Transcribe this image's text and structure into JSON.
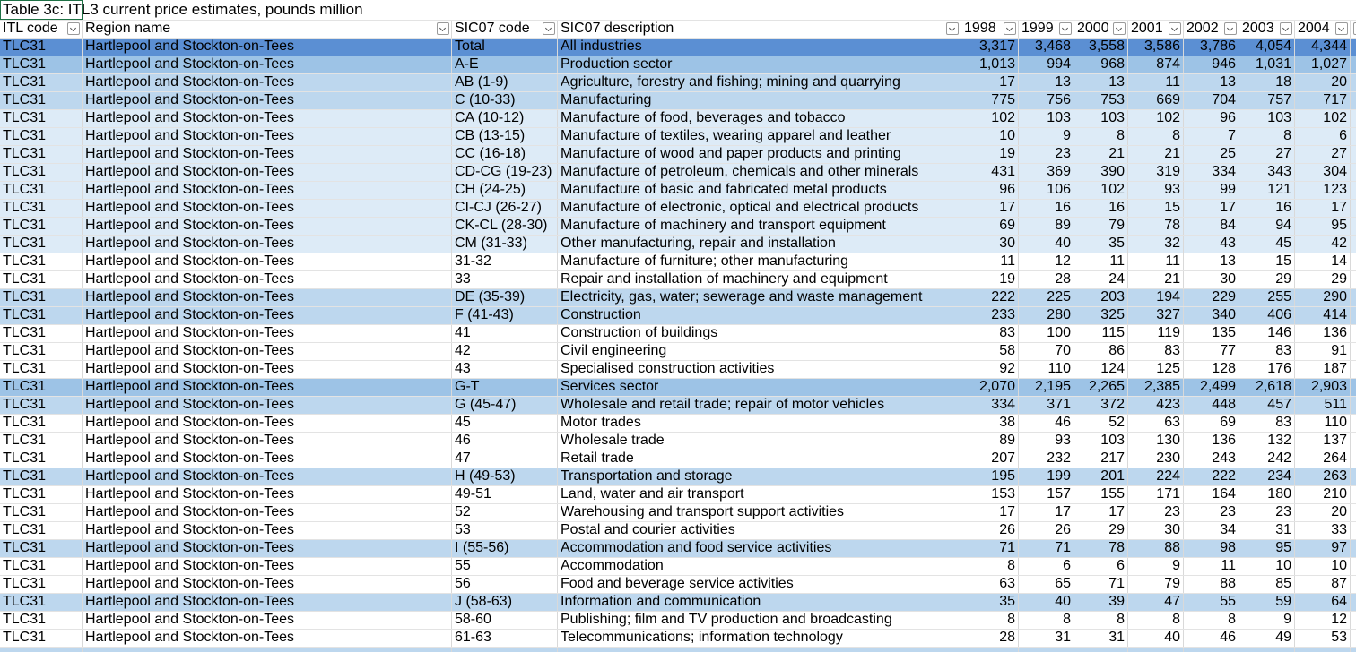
{
  "title": "Table 3c: ITL3 current price estimates, pounds million",
  "header": [
    "ITL code",
    "Region name",
    "SIC07 code",
    "SIC07 description",
    "1998",
    "1999",
    "2000",
    "2001",
    "2002",
    "2003",
    "2004"
  ],
  "rows": [
    {
      "fill": "#5b8fd3",
      "cells": [
        "TLC31",
        "Hartlepool and Stockton-on-Tees",
        "Total",
        "All industries",
        "3,317",
        "3,468",
        "3,558",
        "3,586",
        "3,786",
        "4,054",
        "4,344"
      ]
    },
    {
      "fill": "#9dc3e6",
      "cells": [
        "TLC31",
        "Hartlepool and Stockton-on-Tees",
        "A-E",
        "Production sector",
        "1,013",
        "994",
        "968",
        "874",
        "946",
        "1,031",
        "1,027"
      ]
    },
    {
      "fill": "#bdd7ee",
      "cells": [
        "TLC31",
        "Hartlepool and Stockton-on-Tees",
        "AB (1-9)",
        "Agriculture, forestry and fishing; mining and quarrying",
        "17",
        "13",
        "13",
        "11",
        "13",
        "18",
        "20"
      ]
    },
    {
      "fill": "#bdd7ee",
      "cells": [
        "TLC31",
        "Hartlepool and Stockton-on-Tees",
        "C (10-33)",
        "Manufacturing",
        "775",
        "756",
        "753",
        "669",
        "704",
        "757",
        "717"
      ]
    },
    {
      "fill": "#ddebf7",
      "cells": [
        "TLC31",
        "Hartlepool and Stockton-on-Tees",
        "CA (10-12)",
        "Manufacture of food, beverages and tobacco",
        "102",
        "103",
        "103",
        "102",
        "96",
        "103",
        "102"
      ]
    },
    {
      "fill": "#ddebf7",
      "cells": [
        "TLC31",
        "Hartlepool and Stockton-on-Tees",
        "CB (13-15)",
        "Manufacture of textiles, wearing apparel and leather",
        "10",
        "9",
        "8",
        "8",
        "7",
        "8",
        "6"
      ]
    },
    {
      "fill": "#ddebf7",
      "cells": [
        "TLC31",
        "Hartlepool and Stockton-on-Tees",
        "CC (16-18)",
        "Manufacture of wood and paper products and printing",
        "19",
        "23",
        "21",
        "21",
        "25",
        "27",
        "27"
      ]
    },
    {
      "fill": "#ddebf7",
      "cells": [
        "TLC31",
        "Hartlepool and Stockton-on-Tees",
        "CD-CG (19-23)",
        "Manufacture of petroleum, chemicals and other minerals",
        "431",
        "369",
        "390",
        "319",
        "334",
        "343",
        "304"
      ]
    },
    {
      "fill": "#ddebf7",
      "cells": [
        "TLC31",
        "Hartlepool and Stockton-on-Tees",
        "CH (24-25)",
        "Manufacture of basic and fabricated metal products",
        "96",
        "106",
        "102",
        "93",
        "99",
        "121",
        "123"
      ]
    },
    {
      "fill": "#ddebf7",
      "cells": [
        "TLC31",
        "Hartlepool and Stockton-on-Tees",
        "CI-CJ (26-27)",
        "Manufacture of electronic, optical and electrical products",
        "17",
        "16",
        "16",
        "15",
        "17",
        "16",
        "17"
      ]
    },
    {
      "fill": "#ddebf7",
      "cells": [
        "TLC31",
        "Hartlepool and Stockton-on-Tees",
        "CK-CL (28-30)",
        "Manufacture of machinery and transport equipment",
        "69",
        "89",
        "79",
        "78",
        "84",
        "94",
        "95"
      ]
    },
    {
      "fill": "#ddebf7",
      "cells": [
        "TLC31",
        "Hartlepool and Stockton-on-Tees",
        "CM (31-33)",
        "Other manufacturing, repair and installation",
        "30",
        "40",
        "35",
        "32",
        "43",
        "45",
        "42"
      ]
    },
    {
      "fill": "#ffffff",
      "cells": [
        "TLC31",
        "Hartlepool and Stockton-on-Tees",
        "31-32",
        "Manufacture of furniture; other manufacturing",
        "11",
        "12",
        "11",
        "11",
        "13",
        "15",
        "14"
      ]
    },
    {
      "fill": "#ffffff",
      "cells": [
        "TLC31",
        "Hartlepool and Stockton-on-Tees",
        "33",
        "Repair and installation of machinery and equipment",
        "19",
        "28",
        "24",
        "21",
        "30",
        "29",
        "29"
      ]
    },
    {
      "fill": "#bdd7ee",
      "cells": [
        "TLC31",
        "Hartlepool and Stockton-on-Tees",
        "DE (35-39)",
        "Electricity, gas, water; sewerage and waste management",
        "222",
        "225",
        "203",
        "194",
        "229",
        "255",
        "290"
      ]
    },
    {
      "fill": "#bdd7ee",
      "cells": [
        "TLC31",
        "Hartlepool and Stockton-on-Tees",
        "F (41-43)",
        "Construction",
        "233",
        "280",
        "325",
        "327",
        "340",
        "406",
        "414"
      ]
    },
    {
      "fill": "#ffffff",
      "cells": [
        "TLC31",
        "Hartlepool and Stockton-on-Tees",
        "41",
        "Construction of buildings",
        "83",
        "100",
        "115",
        "119",
        "135",
        "146",
        "136"
      ]
    },
    {
      "fill": "#ffffff",
      "cells": [
        "TLC31",
        "Hartlepool and Stockton-on-Tees",
        "42",
        "Civil engineering",
        "58",
        "70",
        "86",
        "83",
        "77",
        "83",
        "91"
      ]
    },
    {
      "fill": "#ffffff",
      "cells": [
        "TLC31",
        "Hartlepool and Stockton-on-Tees",
        "43",
        "Specialised construction activities",
        "92",
        "110",
        "124",
        "125",
        "128",
        "176",
        "187"
      ]
    },
    {
      "fill": "#9dc3e6",
      "cells": [
        "TLC31",
        "Hartlepool and Stockton-on-Tees",
        "G-T",
        "Services sector",
        "2,070",
        "2,195",
        "2,265",
        "2,385",
        "2,499",
        "2,618",
        "2,903"
      ]
    },
    {
      "fill": "#bdd7ee",
      "cells": [
        "TLC31",
        "Hartlepool and Stockton-on-Tees",
        "G (45-47)",
        "Wholesale and retail trade; repair of motor vehicles",
        "334",
        "371",
        "372",
        "423",
        "448",
        "457",
        "511"
      ]
    },
    {
      "fill": "#ffffff",
      "cells": [
        "TLC31",
        "Hartlepool and Stockton-on-Tees",
        "45",
        "Motor trades",
        "38",
        "46",
        "52",
        "63",
        "69",
        "83",
        "110"
      ]
    },
    {
      "fill": "#ffffff",
      "cells": [
        "TLC31",
        "Hartlepool and Stockton-on-Tees",
        "46",
        "Wholesale trade",
        "89",
        "93",
        "103",
        "130",
        "136",
        "132",
        "137"
      ]
    },
    {
      "fill": "#ffffff",
      "cells": [
        "TLC31",
        "Hartlepool and Stockton-on-Tees",
        "47",
        "Retail trade",
        "207",
        "232",
        "217",
        "230",
        "243",
        "242",
        "264"
      ]
    },
    {
      "fill": "#bdd7ee",
      "cells": [
        "TLC31",
        "Hartlepool and Stockton-on-Tees",
        "H (49-53)",
        "Transportation and storage",
        "195",
        "199",
        "201",
        "224",
        "222",
        "234",
        "263"
      ]
    },
    {
      "fill": "#ffffff",
      "cells": [
        "TLC31",
        "Hartlepool and Stockton-on-Tees",
        "49-51",
        "Land, water and air transport",
        "153",
        "157",
        "155",
        "171",
        "164",
        "180",
        "210"
      ]
    },
    {
      "fill": "#ffffff",
      "cells": [
        "TLC31",
        "Hartlepool and Stockton-on-Tees",
        "52",
        "Warehousing and transport support activities",
        "17",
        "17",
        "17",
        "23",
        "23",
        "23",
        "20"
      ]
    },
    {
      "fill": "#ffffff",
      "cells": [
        "TLC31",
        "Hartlepool and Stockton-on-Tees",
        "53",
        "Postal and courier activities",
        "26",
        "26",
        "29",
        "30",
        "34",
        "31",
        "33"
      ]
    },
    {
      "fill": "#bdd7ee",
      "cells": [
        "TLC31",
        "Hartlepool and Stockton-on-Tees",
        "I (55-56)",
        "Accommodation and food service activities",
        "71",
        "71",
        "78",
        "88",
        "98",
        "95",
        "97"
      ]
    },
    {
      "fill": "#ffffff",
      "cells": [
        "TLC31",
        "Hartlepool and Stockton-on-Tees",
        "55",
        "Accommodation",
        "8",
        "6",
        "6",
        "9",
        "11",
        "10",
        "10"
      ]
    },
    {
      "fill": "#ffffff",
      "cells": [
        "TLC31",
        "Hartlepool and Stockton-on-Tees",
        "56",
        "Food and beverage service activities",
        "63",
        "65",
        "71",
        "79",
        "88",
        "85",
        "87"
      ]
    },
    {
      "fill": "#bdd7ee",
      "cells": [
        "TLC31",
        "Hartlepool and Stockton-on-Tees",
        "J (58-63)",
        "Information and communication",
        "35",
        "40",
        "39",
        "47",
        "55",
        "59",
        "64"
      ]
    },
    {
      "fill": "#ffffff",
      "cells": [
        "TLC31",
        "Hartlepool and Stockton-on-Tees",
        "58-60",
        "Publishing; film and TV production and broadcasting",
        "8",
        "8",
        "8",
        "8",
        "8",
        "9",
        "12"
      ]
    },
    {
      "fill": "#ffffff",
      "cells": [
        "TLC31",
        "Hartlepool and Stockton-on-Tees",
        "61-63",
        "Telecommunications; information technology",
        "28",
        "31",
        "31",
        "40",
        "46",
        "49",
        "53"
      ]
    }
  ]
}
